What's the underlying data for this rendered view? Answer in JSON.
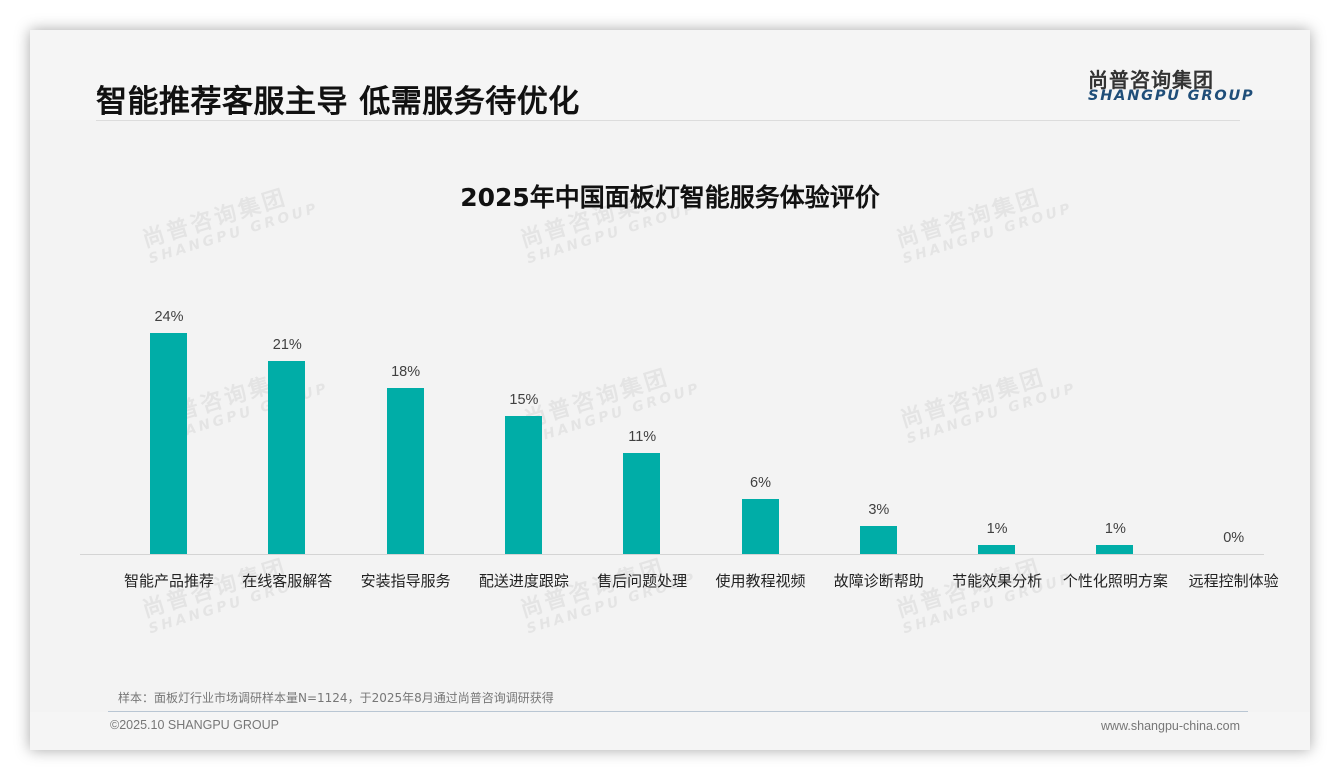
{
  "header": {
    "title": "智能推荐客服主导 低需服务待优化",
    "logo_cn": "尚普咨询集团",
    "logo_en": "SHANGPU GROUP"
  },
  "watermark": {
    "cn": "尚普咨询集团",
    "en": "SHANGPU GROUP"
  },
  "chart_data": {
    "type": "bar",
    "title": "2025年中国面板灯智能服务体验评价",
    "xlabel": "",
    "ylabel": "",
    "ylim": [
      0,
      30
    ],
    "grid": false,
    "legend": "none",
    "bar_color": "#00ada7",
    "categories": [
      "智能产品推荐",
      "在线客服解答",
      "安装指导服务",
      "配送进度跟踪",
      "售后问题处理",
      "使用教程视频",
      "故障诊断帮助",
      "节能效果分析",
      "个性化照明方案",
      "远程控制体验"
    ],
    "values": [
      24,
      21,
      18,
      15,
      11,
      6,
      3,
      1,
      1,
      0
    ],
    "value_labels": [
      "24%",
      "21%",
      "18%",
      "15%",
      "11%",
      "6%",
      "3%",
      "1%",
      "1%",
      "0%"
    ]
  },
  "footer": {
    "note": "样本：面板灯行业市场调研样本量N=1124，于2025年8月通过尚普咨询调研获得",
    "copyright": "©2025.10 SHANGPU GROUP",
    "website": "www.shangpu-china.com"
  }
}
